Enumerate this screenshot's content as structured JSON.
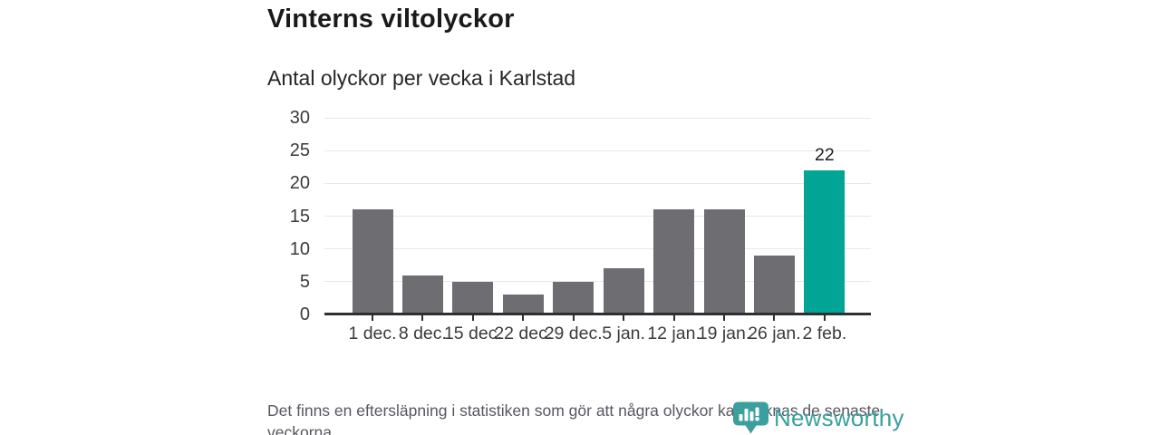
{
  "header": {
    "title": "Vinterns viltolyckor",
    "subtitle": "Antal olyckor per vecka i Karlstad"
  },
  "footer": {
    "note": "Det finns en eftersläpning i statistiken som gör att några olyckor kan saknas de senaste veckorna.",
    "brand": "Newsworthy"
  },
  "colors": {
    "title_text": "#1a1a1a",
    "subtitle_text": "#262626",
    "axis_text": "#3b3b3b",
    "note_text": "#575760",
    "bar": "#6d6d72",
    "highlight": "#00a596",
    "gridline": "#e8e8e8",
    "axis_line": "#2f2f33",
    "value_text": "#1f1f1f",
    "logo_teal": "#3ba09d"
  },
  "chart_data": {
    "type": "bar",
    "title": "Vinterns viltolyckor",
    "subtitle": "Antal olyckor per vecka i Karlstad",
    "categories": [
      "1 dec.",
      "8 dec.",
      "15 dec.",
      "22 dec.",
      "29 dec.",
      "5 jan.",
      "12 jan.",
      "19 jan.",
      "26 jan.",
      "2 feb."
    ],
    "values": [
      16,
      6,
      5,
      3,
      5,
      7,
      16,
      16,
      9,
      22
    ],
    "highlight_index": 9,
    "annotations": [
      {
        "index": 9,
        "text": "22"
      }
    ],
    "xlabel": "",
    "ylabel": "",
    "ylim": [
      0,
      30
    ],
    "yticks": [
      0,
      5,
      10,
      15,
      20,
      25,
      30
    ],
    "grid": true,
    "legend": false,
    "bar_color": "#6d6d72",
    "highlight_color": "#00a596"
  }
}
